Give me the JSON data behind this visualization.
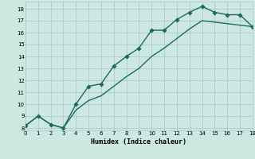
{
  "xlabel": "Humidex (Indice chaleur)",
  "bg_color": "#cce8e0",
  "grid_color": "#aacccc",
  "line_color": "#1a6b5a",
  "line1_x": [
    0,
    1,
    2,
    3,
    4,
    5,
    6,
    7,
    8,
    9,
    10,
    11,
    12,
    13,
    14,
    15,
    16,
    17,
    18
  ],
  "line1_y": [
    8.2,
    9.0,
    8.3,
    8.0,
    10.0,
    11.5,
    11.7,
    13.2,
    14.0,
    14.7,
    16.2,
    16.2,
    17.1,
    17.7,
    18.2,
    17.7,
    17.5,
    17.5,
    16.5
  ],
  "line2_x": [
    0,
    1,
    2,
    3,
    4,
    5,
    6,
    7,
    8,
    9,
    10,
    11,
    12,
    13,
    14,
    18
  ],
  "line2_y": [
    8.2,
    9.0,
    8.3,
    8.0,
    9.5,
    10.3,
    10.7,
    11.5,
    12.3,
    13.0,
    14.0,
    14.7,
    15.5,
    16.3,
    17.0,
    16.5
  ],
  "xlim": [
    0,
    18
  ],
  "ylim": [
    7.8,
    18.6
  ],
  "xticks": [
    0,
    1,
    2,
    3,
    4,
    5,
    6,
    7,
    8,
    9,
    10,
    11,
    12,
    13,
    14,
    15,
    16,
    17,
    18
  ],
  "yticks": [
    8,
    9,
    10,
    11,
    12,
    13,
    14,
    15,
    16,
    17,
    18
  ],
  "marker": "D",
  "markersize": 2.8,
  "linewidth": 1.0
}
